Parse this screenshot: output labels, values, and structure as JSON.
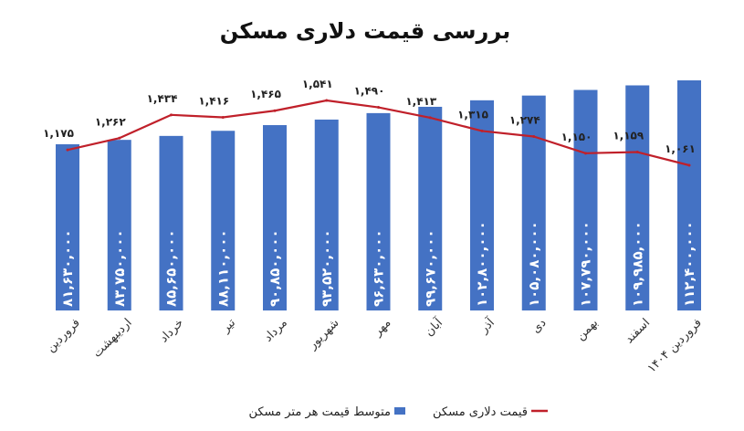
{
  "chart_data": {
    "type": "bar",
    "title": "بررسی قیمت دلاری مسکن",
    "categories": [
      "فروردین",
      "اردیبهشت",
      "خرداد",
      "تیر",
      "مرداد",
      "شهریور",
      "مهر",
      "آبان",
      "آذر",
      "دی",
      "بهمن",
      "اسفند",
      "فروردین ۱۴۰۴"
    ],
    "series": [
      {
        "name": "متوسط قیمت هر متر مسکن",
        "type": "bar",
        "color": "#4472c4",
        "values": [
          81630000,
          83750000,
          85650000,
          88110000,
          90850000,
          93520000,
          96630000,
          99670000,
          102800000,
          105080000,
          107790000,
          109985000,
          112400000
        ],
        "labels": [
          "۸۱,۶۳۰,۰۰۰",
          "۸۳,۷۵۰,۰۰۰",
          "۸۵,۶۵۰,۰۰۰",
          "۸۸,۱۱۰,۰۰۰",
          "۹۰,۸۵۰,۰۰۰",
          "۹۳,۵۲۰,۰۰۰",
          "۹۶,۶۳۰,۰۰۰",
          "۹۹,۶۷۰,۰۰۰",
          "۱۰۲,۸۰۰,۰۰۰",
          "۱۰۵,۰۸۰,۰۰۰",
          "۱۰۷,۷۹۰,۰۰۰",
          "۱۰۹,۹۸۵,۰۰۰",
          "۱۱۲,۴۰۰,۰۰۰"
        ]
      },
      {
        "name": "قیمت دلاری مسکن",
        "type": "line",
        "color": "#c0202a",
        "values": [
          1175,
          1262,
          1434,
          1416,
          1465,
          1541,
          1490,
          1413,
          1315,
          1274,
          1150,
          1159,
          1061
        ],
        "labels": [
          "۱,۱۷۵",
          "۱,۲۶۲",
          "۱,۴۳۴",
          "۱,۴۱۶",
          "۱,۴۶۵",
          "۱,۵۴۱",
          "۱,۴۹۰",
          "۱,۴۱۳",
          "۱,۳۱۵",
          "۱,۲۷۴",
          "۱,۱۵۰",
          "۱,۱۵۹",
          "۱,۰۶۱"
        ]
      }
    ],
    "legend": "bottom",
    "grid": false
  }
}
